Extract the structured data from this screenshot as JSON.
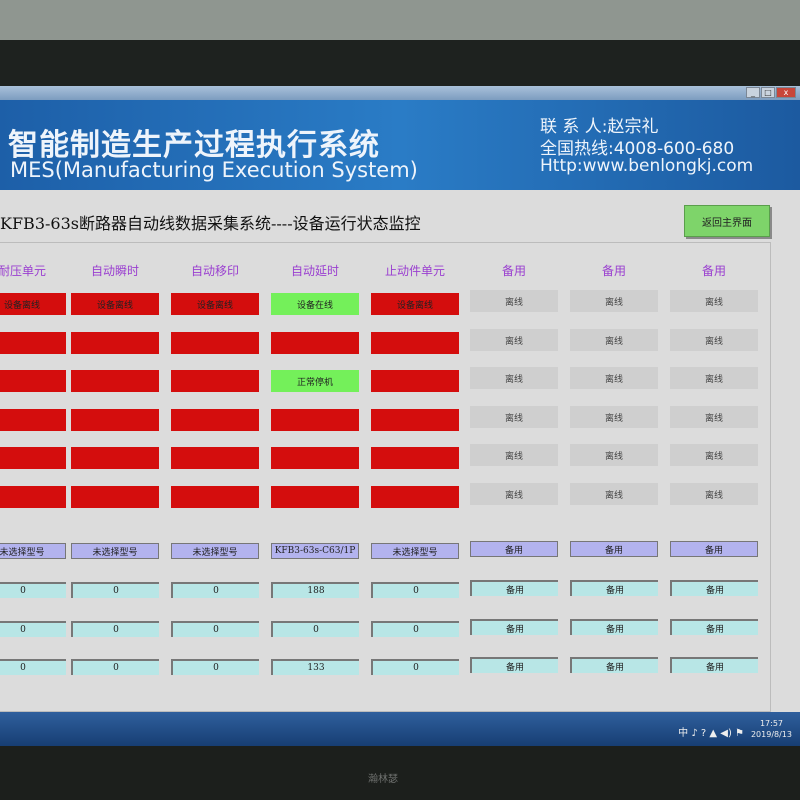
{
  "window": {
    "buttons": [
      "_",
      "□",
      "x"
    ]
  },
  "banner": {
    "title_cn": "智能制造生产过程执行系统",
    "title_en": "MES(Manufacturing Execution System)",
    "contact": "联 系 人:赵宗礼",
    "hotline": "全国热线:4008-600-680",
    "website": "Http:www.benlongkj.com"
  },
  "page": {
    "subtitle": "KFB3-63s断路器自动线数据采集系统----设备运行状态监控",
    "back_button": "返回主界面"
  },
  "columns": [
    "耐压单元",
    "自动瞬时",
    "自动移印",
    "自动延时",
    "止动件单元",
    "备用",
    "备用",
    "备用"
  ],
  "status_rows": [
    [
      {
        "s": "red",
        "t": "设备离线"
      },
      {
        "s": "red",
        "t": "设备离线"
      },
      {
        "s": "red",
        "t": "设备离线"
      },
      {
        "s": "green",
        "t": "设备在线"
      },
      {
        "s": "red",
        "t": "设备离线"
      },
      {
        "s": "gray",
        "t": "离线"
      },
      {
        "s": "gray",
        "t": "离线"
      },
      {
        "s": "gray",
        "t": "离线"
      }
    ],
    [
      {
        "s": "red",
        "t": ""
      },
      {
        "s": "red",
        "t": ""
      },
      {
        "s": "red",
        "t": ""
      },
      {
        "s": "red",
        "t": ""
      },
      {
        "s": "red",
        "t": ""
      },
      {
        "s": "gray",
        "t": "离线"
      },
      {
        "s": "gray",
        "t": "离线"
      },
      {
        "s": "gray",
        "t": "离线"
      }
    ],
    [
      {
        "s": "red",
        "t": ""
      },
      {
        "s": "red",
        "t": ""
      },
      {
        "s": "red",
        "t": ""
      },
      {
        "s": "green",
        "t": "正常停机"
      },
      {
        "s": "red",
        "t": ""
      },
      {
        "s": "gray",
        "t": "离线"
      },
      {
        "s": "gray",
        "t": "离线"
      },
      {
        "s": "gray",
        "t": "离线"
      }
    ],
    [
      {
        "s": "red",
        "t": ""
      },
      {
        "s": "red",
        "t": ""
      },
      {
        "s": "red",
        "t": ""
      },
      {
        "s": "red",
        "t": ""
      },
      {
        "s": "red",
        "t": ""
      },
      {
        "s": "gray",
        "t": "离线"
      },
      {
        "s": "gray",
        "t": "离线"
      },
      {
        "s": "gray",
        "t": "离线"
      }
    ],
    [
      {
        "s": "red",
        "t": ""
      },
      {
        "s": "red",
        "t": ""
      },
      {
        "s": "red",
        "t": ""
      },
      {
        "s": "red",
        "t": ""
      },
      {
        "s": "red",
        "t": ""
      },
      {
        "s": "gray",
        "t": "离线"
      },
      {
        "s": "gray",
        "t": "离线"
      },
      {
        "s": "gray",
        "t": "离线"
      }
    ],
    [
      {
        "s": "red",
        "t": ""
      },
      {
        "s": "red",
        "t": ""
      },
      {
        "s": "red",
        "t": ""
      },
      {
        "s": "red",
        "t": ""
      },
      {
        "s": "red",
        "t": ""
      },
      {
        "s": "gray",
        "t": "离线"
      },
      {
        "s": "gray",
        "t": "离线"
      },
      {
        "s": "gray",
        "t": "离线"
      }
    ]
  ],
  "model_row": [
    "未选择型号",
    "未选择型号",
    "未选择型号",
    "KFB3-63s-C63/1P",
    "未选择型号",
    "备用",
    "备用",
    "备用"
  ],
  "value_rows": [
    [
      "0",
      "0",
      "0",
      "188",
      "0",
      "备用",
      "备用",
      "备用"
    ],
    [
      "0",
      "0",
      "0",
      "0",
      "0",
      "备用",
      "备用",
      "备用"
    ],
    [
      "0",
      "0",
      "0",
      "133",
      "0",
      "备用",
      "备用",
      "备用"
    ]
  ],
  "taskbar": {
    "tray": "中 ♪ ? ▲ ◀) ⚑",
    "time": "17:57",
    "date": "2019/8/13"
  },
  "monitor_logo": "瀚林瑟",
  "colors": {
    "offline_red": "#d40d0d",
    "online_green": "#74f05a",
    "spare_gray": "#cfcfcf",
    "header_purple": "#9a3fd0",
    "model_purple": "#b3b3ee",
    "value_cyan": "#b8e6e6",
    "back_button_green": "#7ed46a"
  }
}
